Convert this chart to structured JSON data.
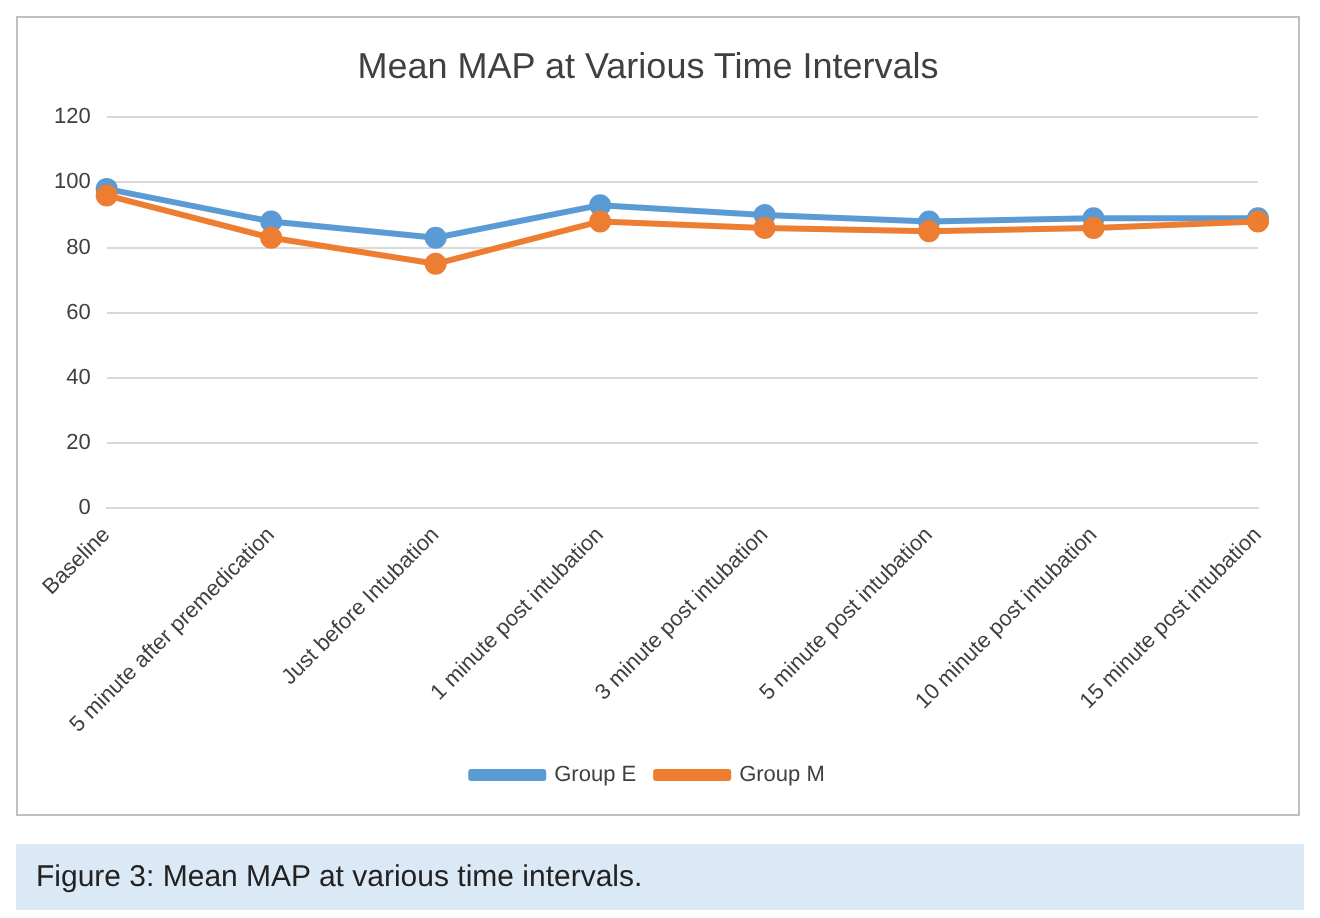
{
  "chart_data": {
    "type": "line",
    "title": "Mean MAP at Various Time Intervals",
    "categories": [
      "Baseline",
      "5 minute after premedication",
      "Just before Intubation",
      "1 minute post intubation",
      "3 minute post intubation",
      "5 minute post intubation",
      "10 minute post intubation",
      "15 minute post intubation"
    ],
    "series": [
      {
        "name": "Group E",
        "color": "#5b9bd5",
        "values": [
          98,
          88,
          83,
          93,
          90,
          88,
          89,
          89
        ]
      },
      {
        "name": "Group M",
        "color": "#ed7d31",
        "values": [
          96,
          83,
          75,
          88,
          86,
          85,
          86,
          88
        ]
      }
    ],
    "ylim": [
      0,
      120
    ],
    "yticks": [
      0,
      20,
      40,
      60,
      80,
      100,
      120
    ],
    "grid": "y",
    "legend": "bottom",
    "marker": "circle",
    "line_style": "solid",
    "annotations": [
      "Figure 3: Mean MAP at various time intervals."
    ]
  }
}
